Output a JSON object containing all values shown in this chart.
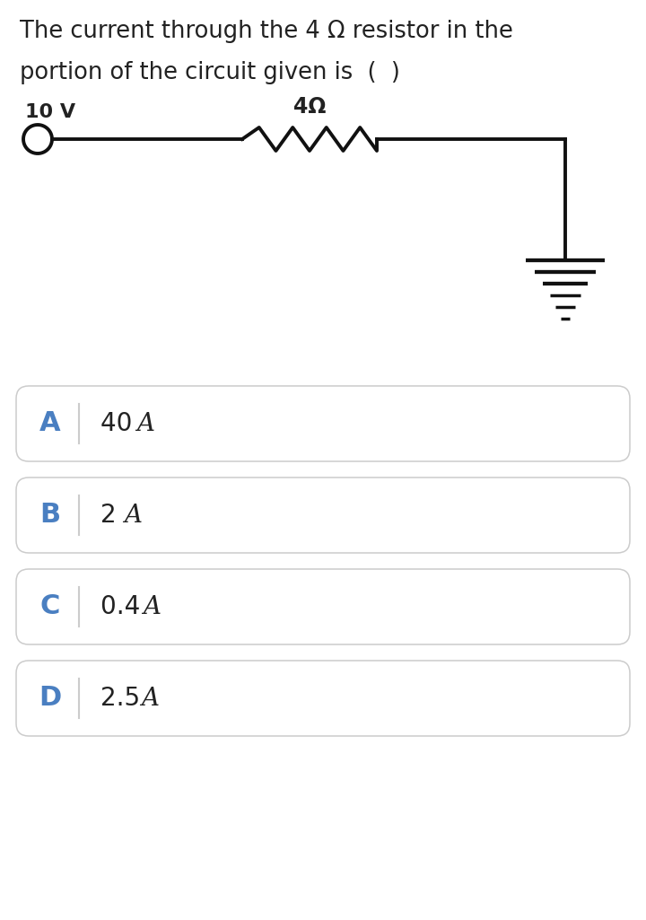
{
  "title_line1": "The current through the 4 Ω resistor in the",
  "title_line2": "portion of the circuit given is  (  )",
  "bg_color": "#ffffff",
  "text_color": "#222222",
  "blue_color": "#4a7fc1",
  "options": [
    {
      "label": "A",
      "text": "40 "
    },
    {
      "label": "B",
      "text": "2 "
    },
    {
      "label": "C",
      "text": "0.4 "
    },
    {
      "label": "D",
      "text": "2.5 "
    }
  ],
  "voltage_label": "10 V",
  "resistor_label": "4Ω",
  "circuit_line_color": "#111111",
  "circuit_lw": 2.8,
  "box_border_color": "#cccccc",
  "box_bg": "#ffffff"
}
